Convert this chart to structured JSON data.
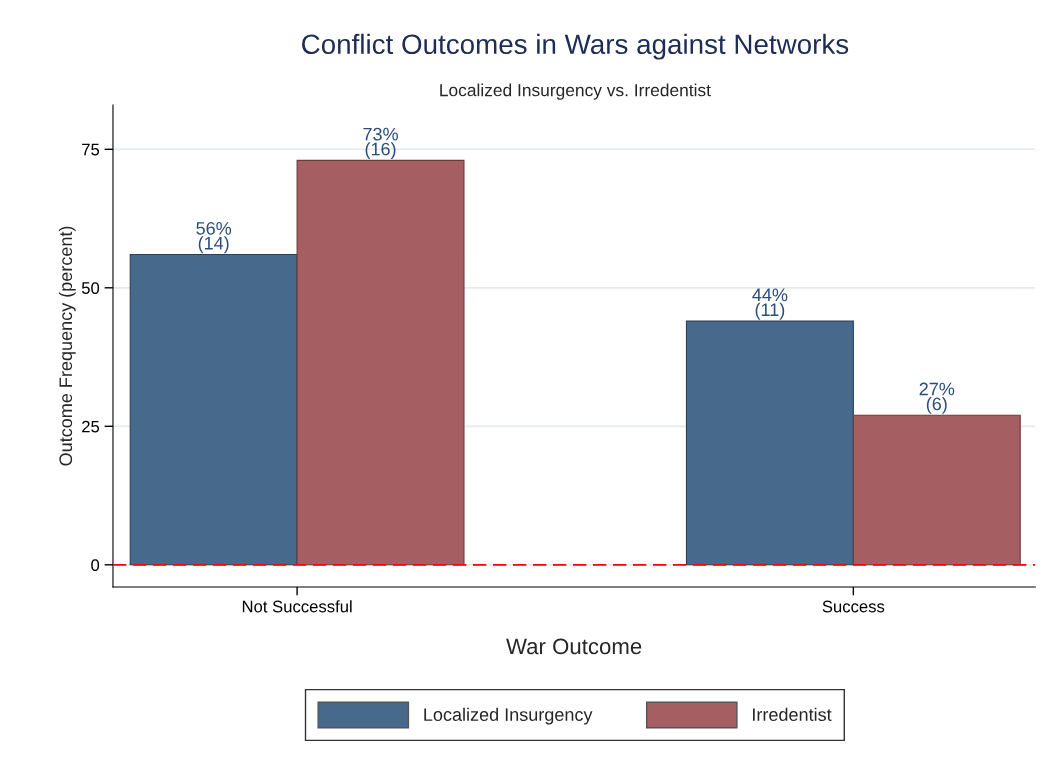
{
  "chart_data": {
    "type": "bar",
    "title": "Conflict Outcomes in Wars against Networks",
    "subtitle": "Localized Insurgency vs. Irredentist",
    "xlabel": "War Outcome",
    "ylabel": "Outcome Frequency (percent)",
    "categories": [
      "Not Successful",
      "Success"
    ],
    "series": [
      {
        "name": "Localized Insurgency",
        "color": "#476a8c",
        "values": [
          56,
          44
        ],
        "value_labels": [
          "56%\n(14)",
          "44%\n(11)"
        ]
      },
      {
        "name": "Irredentist",
        "color": "#a55f62",
        "values": [
          73,
          27
        ],
        "value_labels": [
          "73%\n(16)",
          "27%\n(6)"
        ]
      }
    ],
    "ylim": [
      -4,
      83
    ],
    "yticks": [
      0,
      25,
      50,
      75
    ],
    "grid": "y",
    "legend": "bottom",
    "ref_lines": [
      {
        "axis": "y",
        "value": 0,
        "color": "#ff0000",
        "line_style": "dashed"
      }
    ]
  }
}
